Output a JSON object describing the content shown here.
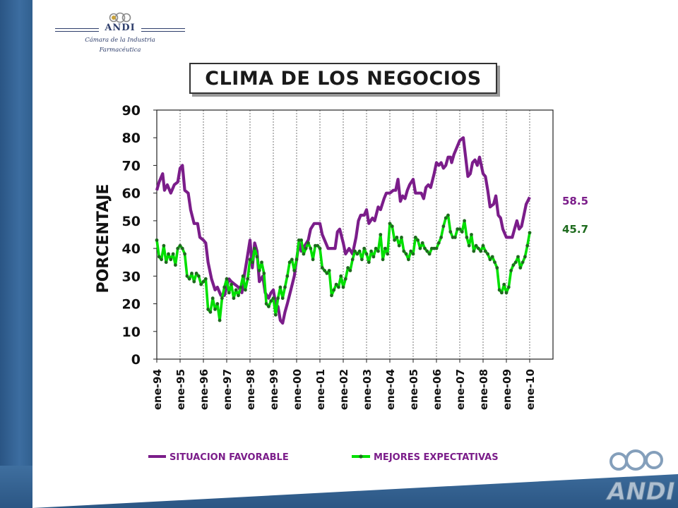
{
  "logo": {
    "name": "ANDI",
    "subtitle_line1": "Cámara de la Industria",
    "subtitle_line2": "Farmacéutica"
  },
  "colors": {
    "situacion": "#7b1d8a",
    "expectativas": "#00e000",
    "expectativas_marker": "#1e6b1e",
    "last_value_green": "#1e6b1e"
  },
  "chart_data": {
    "type": "line",
    "title": "CLIMA DE LOS NEGOCIOS",
    "ylabel": "PORCENTAJE",
    "ylim": [
      0,
      90
    ],
    "yticks": [
      0,
      10,
      20,
      30,
      40,
      50,
      60,
      70,
      80,
      90
    ],
    "categories": [
      "ene-94",
      "ene-95",
      "ene-96",
      "ene-97",
      "ene-98",
      "ene-99",
      "ene-00",
      "ene-01",
      "ene-02",
      "ene-03",
      "ene-04",
      "ene-05",
      "ene-06",
      "ene-07",
      "ene-08",
      "ene-09",
      "ene-10"
    ],
    "x_start": 1994,
    "legend_position": "bottom",
    "series": [
      {
        "name": "SITUACION FAVORABLE",
        "last_value_label": "58.5",
        "values": [
          [
            1994.0,
            61
          ],
          [
            1994.1,
            64
          ],
          [
            1994.25,
            67
          ],
          [
            1994.33,
            61
          ],
          [
            1994.45,
            63
          ],
          [
            1994.6,
            60
          ],
          [
            1994.75,
            63
          ],
          [
            1994.9,
            64
          ],
          [
            1995.0,
            69
          ],
          [
            1995.1,
            70
          ],
          [
            1995.2,
            61
          ],
          [
            1995.35,
            60
          ],
          [
            1995.45,
            54
          ],
          [
            1995.6,
            49
          ],
          [
            1995.75,
            49
          ],
          [
            1995.85,
            44
          ],
          [
            1996.0,
            43
          ],
          [
            1996.1,
            42
          ],
          [
            1996.2,
            35
          ],
          [
            1996.35,
            29
          ],
          [
            1996.5,
            25
          ],
          [
            1996.6,
            26
          ],
          [
            1996.75,
            23
          ],
          [
            1996.9,
            23
          ],
          [
            1997.0,
            26
          ],
          [
            1997.1,
            29
          ],
          [
            1997.2,
            28
          ],
          [
            1997.35,
            27
          ],
          [
            1997.5,
            26
          ],
          [
            1997.65,
            24
          ],
          [
            1997.75,
            30
          ],
          [
            1997.85,
            35
          ],
          [
            1998.0,
            43
          ],
          [
            1998.1,
            33
          ],
          [
            1998.2,
            42
          ],
          [
            1998.3,
            39
          ],
          [
            1998.4,
            28
          ],
          [
            1998.55,
            30
          ],
          [
            1998.65,
            24
          ],
          [
            1998.8,
            22
          ],
          [
            1998.9,
            24
          ],
          [
            1999.0,
            25
          ],
          [
            1999.1,
            20
          ],
          [
            1999.2,
            19
          ],
          [
            1999.3,
            14
          ],
          [
            1999.4,
            13
          ],
          [
            1999.5,
            17
          ],
          [
            1999.6,
            20
          ],
          [
            1999.75,
            25
          ],
          [
            1999.9,
            30
          ],
          [
            2000.0,
            36
          ],
          [
            2000.1,
            42
          ],
          [
            2000.2,
            39
          ],
          [
            2000.35,
            41
          ],
          [
            2000.5,
            43
          ],
          [
            2000.6,
            47
          ],
          [
            2000.75,
            49
          ],
          [
            2000.85,
            49
          ],
          [
            2001.0,
            49
          ],
          [
            2001.1,
            45
          ],
          [
            2001.25,
            42
          ],
          [
            2001.35,
            40
          ],
          [
            2001.5,
            40
          ],
          [
            2001.65,
            40
          ],
          [
            2001.75,
            46
          ],
          [
            2001.85,
            47
          ],
          [
            2002.0,
            42
          ],
          [
            2002.1,
            38
          ],
          [
            2002.25,
            40
          ],
          [
            2002.4,
            38
          ],
          [
            2002.55,
            44
          ],
          [
            2002.65,
            50
          ],
          [
            2002.75,
            52
          ],
          [
            2002.9,
            52
          ],
          [
            2003.0,
            54
          ],
          [
            2003.1,
            49
          ],
          [
            2003.25,
            51
          ],
          [
            2003.35,
            50
          ],
          [
            2003.5,
            55
          ],
          [
            2003.6,
            54
          ],
          [
            2003.75,
            58
          ],
          [
            2003.85,
            60
          ],
          [
            2004.0,
            60
          ],
          [
            2004.15,
            61
          ],
          [
            2004.25,
            61
          ],
          [
            2004.35,
            65
          ],
          [
            2004.45,
            57
          ],
          [
            2004.55,
            59
          ],
          [
            2004.65,
            58
          ],
          [
            2004.75,
            61
          ],
          [
            2004.85,
            63
          ],
          [
            2005.0,
            65
          ],
          [
            2005.1,
            60
          ],
          [
            2005.25,
            60
          ],
          [
            2005.35,
            60
          ],
          [
            2005.45,
            58
          ],
          [
            2005.55,
            62
          ],
          [
            2005.65,
            63
          ],
          [
            2005.75,
            62
          ],
          [
            2005.9,
            67
          ],
          [
            2006.0,
            71
          ],
          [
            2006.1,
            70
          ],
          [
            2006.2,
            71
          ],
          [
            2006.3,
            69
          ],
          [
            2006.4,
            70
          ],
          [
            2006.5,
            73
          ],
          [
            2006.6,
            73
          ],
          [
            2006.65,
            71
          ],
          [
            2006.75,
            74
          ],
          [
            2006.9,
            77
          ],
          [
            2007.0,
            79
          ],
          [
            2007.15,
            80
          ],
          [
            2007.25,
            73
          ],
          [
            2007.35,
            66
          ],
          [
            2007.45,
            67
          ],
          [
            2007.55,
            71
          ],
          [
            2007.65,
            72
          ],
          [
            2007.75,
            70
          ],
          [
            2007.85,
            73
          ],
          [
            2008.0,
            67
          ],
          [
            2008.1,
            66
          ],
          [
            2008.2,
            61
          ],
          [
            2008.3,
            55
          ],
          [
            2008.45,
            56
          ],
          [
            2008.55,
            59
          ],
          [
            2008.65,
            52
          ],
          [
            2008.75,
            51
          ],
          [
            2008.85,
            47
          ],
          [
            2009.0,
            44
          ],
          [
            2009.15,
            44
          ],
          [
            2009.25,
            44
          ],
          [
            2009.35,
            47
          ],
          [
            2009.45,
            50
          ],
          [
            2009.55,
            47
          ],
          [
            2009.65,
            48
          ],
          [
            2009.75,
            52
          ],
          [
            2009.85,
            56
          ],
          [
            2010.0,
            58.5
          ]
        ]
      },
      {
        "name": "MEJORES EXPECTATIVAS",
        "last_value_label": "45.7",
        "values": [
          [
            1994.0,
            43
          ],
          [
            1994.1,
            37
          ],
          [
            1994.2,
            36
          ],
          [
            1994.3,
            41
          ],
          [
            1994.4,
            35
          ],
          [
            1994.5,
            38
          ],
          [
            1994.6,
            36
          ],
          [
            1994.7,
            38
          ],
          [
            1994.8,
            34
          ],
          [
            1994.9,
            40
          ],
          [
            1995.0,
            41
          ],
          [
            1995.1,
            40
          ],
          [
            1995.2,
            38
          ],
          [
            1995.3,
            30
          ],
          [
            1995.4,
            29
          ],
          [
            1995.5,
            31
          ],
          [
            1995.6,
            28
          ],
          [
            1995.7,
            31
          ],
          [
            1995.8,
            30
          ],
          [
            1995.9,
            27
          ],
          [
            1996.0,
            28
          ],
          [
            1996.1,
            29
          ],
          [
            1996.2,
            18
          ],
          [
            1996.3,
            17
          ],
          [
            1996.4,
            22
          ],
          [
            1996.5,
            18
          ],
          [
            1996.6,
            20
          ],
          [
            1996.7,
            14
          ],
          [
            1996.8,
            22
          ],
          [
            1996.9,
            26
          ],
          [
            1997.0,
            29
          ],
          [
            1997.1,
            24
          ],
          [
            1997.2,
            27
          ],
          [
            1997.3,
            22
          ],
          [
            1997.4,
            25
          ],
          [
            1997.5,
            23
          ],
          [
            1997.6,
            26
          ],
          [
            1997.7,
            30
          ],
          [
            1997.8,
            25
          ],
          [
            1997.9,
            29
          ],
          [
            1998.0,
            36
          ],
          [
            1998.1,
            35
          ],
          [
            1998.2,
            40
          ],
          [
            1998.3,
            37
          ],
          [
            1998.4,
            32
          ],
          [
            1998.5,
            35
          ],
          [
            1998.6,
            31
          ],
          [
            1998.7,
            20
          ],
          [
            1998.8,
            19
          ],
          [
            1998.9,
            21
          ],
          [
            1999.0,
            22
          ],
          [
            1999.1,
            16
          ],
          [
            1999.2,
            22
          ],
          [
            1999.3,
            26
          ],
          [
            1999.4,
            22
          ],
          [
            1999.5,
            26
          ],
          [
            1999.6,
            30
          ],
          [
            1999.7,
            35
          ],
          [
            1999.8,
            36
          ],
          [
            1999.9,
            32
          ],
          [
            2000.0,
            36
          ],
          [
            2000.1,
            43
          ],
          [
            2000.2,
            43
          ],
          [
            2000.3,
            38
          ],
          [
            2000.4,
            40
          ],
          [
            2000.5,
            42
          ],
          [
            2000.6,
            40
          ],
          [
            2000.7,
            36
          ],
          [
            2000.8,
            41
          ],
          [
            2000.9,
            41
          ],
          [
            2001.0,
            40
          ],
          [
            2001.1,
            33
          ],
          [
            2001.2,
            32
          ],
          [
            2001.3,
            31
          ],
          [
            2001.4,
            32
          ],
          [
            2001.5,
            23
          ],
          [
            2001.6,
            25
          ],
          [
            2001.7,
            27
          ],
          [
            2001.8,
            26
          ],
          [
            2001.9,
            30
          ],
          [
            2002.0,
            26
          ],
          [
            2002.1,
            29
          ],
          [
            2002.2,
            33
          ],
          [
            2002.3,
            32
          ],
          [
            2002.4,
            36
          ],
          [
            2002.5,
            39
          ],
          [
            2002.6,
            38
          ],
          [
            2002.7,
            39
          ],
          [
            2002.8,
            36
          ],
          [
            2002.9,
            40
          ],
          [
            2003.0,
            38
          ],
          [
            2003.1,
            35
          ],
          [
            2003.2,
            39
          ],
          [
            2003.3,
            37
          ],
          [
            2003.4,
            40
          ],
          [
            2003.5,
            39
          ],
          [
            2003.6,
            45
          ],
          [
            2003.7,
            36
          ],
          [
            2003.8,
            40
          ],
          [
            2003.9,
            38
          ],
          [
            2004.0,
            49
          ],
          [
            2004.1,
            48
          ],
          [
            2004.2,
            43
          ],
          [
            2004.3,
            44
          ],
          [
            2004.4,
            41
          ],
          [
            2004.5,
            44
          ],
          [
            2004.6,
            39
          ],
          [
            2004.7,
            38
          ],
          [
            2004.8,
            36
          ],
          [
            2004.9,
            39
          ],
          [
            2005.0,
            38
          ],
          [
            2005.1,
            44
          ],
          [
            2005.2,
            43
          ],
          [
            2005.3,
            40
          ],
          [
            2005.4,
            42
          ],
          [
            2005.5,
            40
          ],
          [
            2005.6,
            39
          ],
          [
            2005.7,
            38
          ],
          [
            2005.8,
            40
          ],
          [
            2005.9,
            40
          ],
          [
            2006.0,
            40
          ],
          [
            2006.1,
            42
          ],
          [
            2006.2,
            44
          ],
          [
            2006.3,
            48
          ],
          [
            2006.4,
            51
          ],
          [
            2006.5,
            52
          ],
          [
            2006.6,
            46
          ],
          [
            2006.7,
            44
          ],
          [
            2006.8,
            44
          ],
          [
            2006.9,
            47
          ],
          [
            2007.0,
            47
          ],
          [
            2007.1,
            46
          ],
          [
            2007.2,
            50
          ],
          [
            2007.3,
            44
          ],
          [
            2007.4,
            41
          ],
          [
            2007.5,
            45
          ],
          [
            2007.6,
            39
          ],
          [
            2007.7,
            41
          ],
          [
            2007.8,
            40
          ],
          [
            2007.9,
            39
          ],
          [
            2008.0,
            41
          ],
          [
            2008.1,
            39
          ],
          [
            2008.2,
            38
          ],
          [
            2008.3,
            36
          ],
          [
            2008.4,
            37
          ],
          [
            2008.5,
            35
          ],
          [
            2008.6,
            33
          ],
          [
            2008.7,
            25
          ],
          [
            2008.8,
            24
          ],
          [
            2008.9,
            27
          ],
          [
            2009.0,
            24
          ],
          [
            2009.1,
            26
          ],
          [
            2009.2,
            32
          ],
          [
            2009.3,
            34
          ],
          [
            2009.4,
            35
          ],
          [
            2009.5,
            37
          ],
          [
            2009.6,
            33
          ],
          [
            2009.7,
            35
          ],
          [
            2009.8,
            37
          ],
          [
            2009.9,
            41
          ],
          [
            2010.0,
            45.7
          ]
        ]
      }
    ]
  }
}
